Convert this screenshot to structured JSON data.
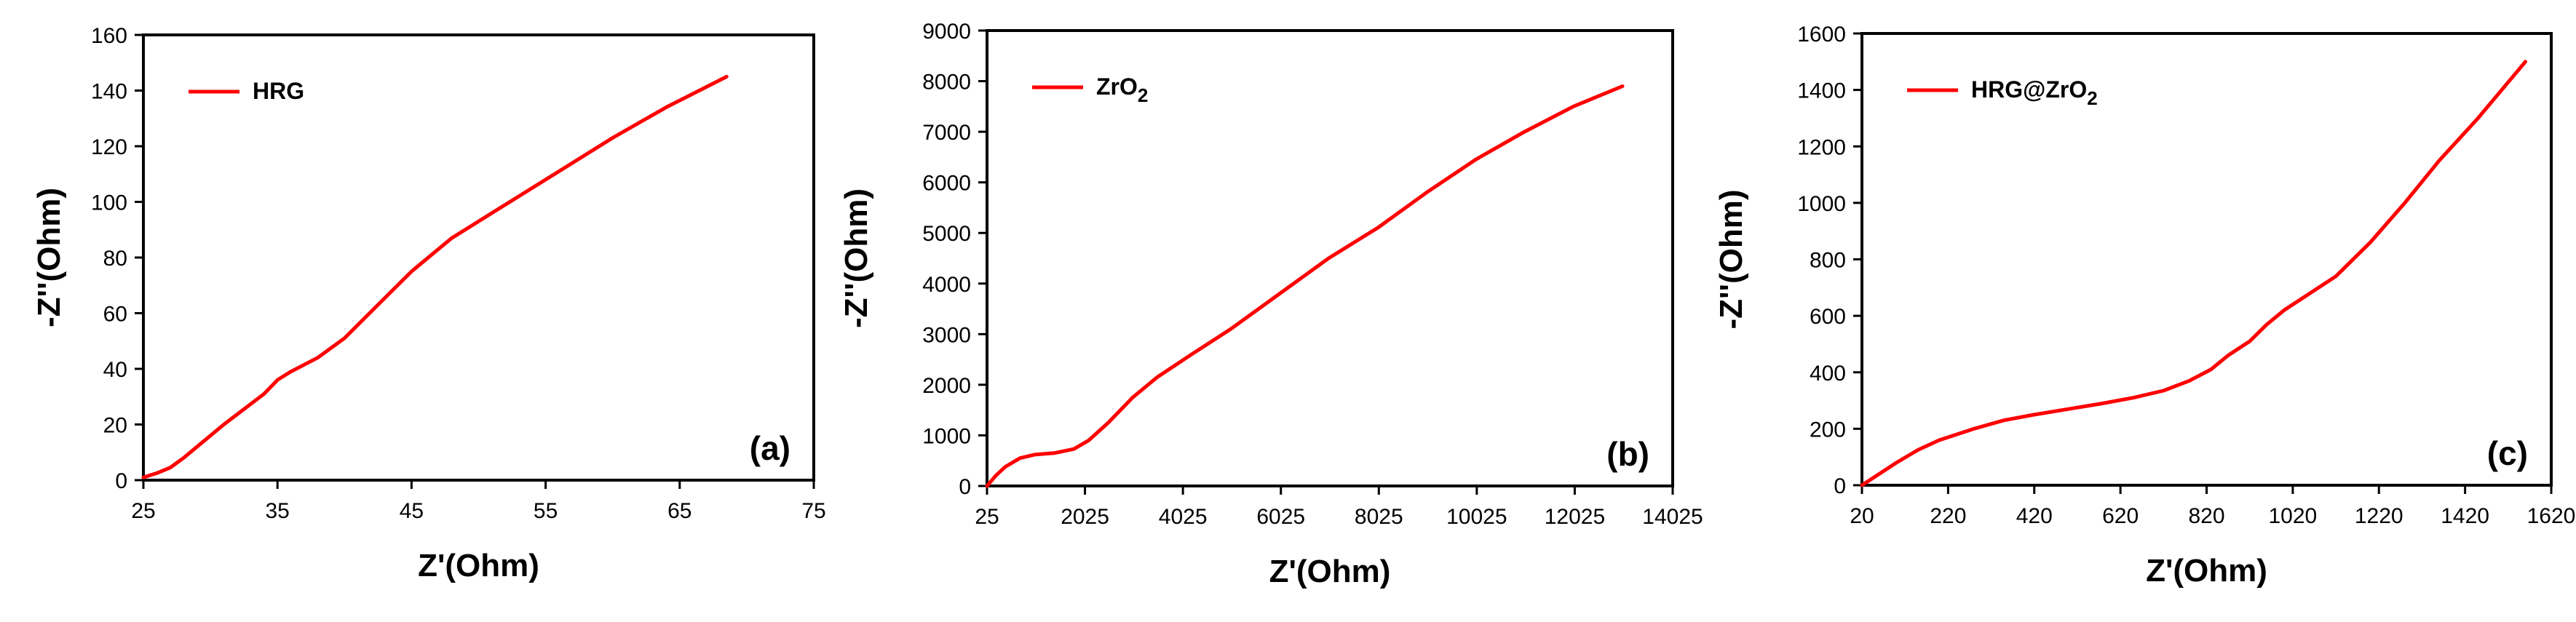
{
  "chart_data": [
    {
      "type": "line",
      "panel_label": "(a)",
      "xlabel": "Z'(Ohm)",
      "ylabel": "-Z''(Ohm)",
      "xlim": [
        25,
        75
      ],
      "ylim": [
        0,
        160
      ],
      "xticks": [
        25,
        35,
        45,
        55,
        65,
        75
      ],
      "yticks": [
        0,
        20,
        40,
        60,
        80,
        100,
        120,
        140,
        160
      ],
      "legend_position": "top-left",
      "series": [
        {
          "name": "HRG",
          "name_parts": [
            {
              "text": "HRG",
              "sub": ""
            }
          ],
          "color": "#ff0000",
          "x": [
            25.0,
            26.0,
            27.0,
            28.0,
            29.0,
            30.0,
            31.0,
            32.5,
            34.0,
            35.0,
            36.0,
            38.0,
            40.0,
            42.5,
            45.0,
            48.0,
            51.0,
            55.0,
            60.0,
            64.0,
            68.5
          ],
          "y": [
            1.0,
            2.5,
            4.5,
            8.0,
            12.0,
            16.0,
            20.0,
            25.5,
            31.0,
            36.0,
            39.0,
            44.0,
            51.0,
            63.0,
            75.0,
            87.0,
            96.0,
            108.0,
            123.0,
            134.0,
            145.0
          ]
        }
      ]
    },
    {
      "type": "line",
      "panel_label": "(b)",
      "xlabel": "Z'(Ohm)",
      "ylabel": "-Z''(Ohm)",
      "xlim": [
        25,
        14025
      ],
      "ylim": [
        0,
        9000
      ],
      "xticks": [
        25,
        2025,
        4025,
        6025,
        8025,
        10025,
        12025,
        14025
      ],
      "yticks": [
        0,
        1000,
        2000,
        3000,
        4000,
        5000,
        6000,
        7000,
        8000,
        9000
      ],
      "legend_position": "top-left",
      "series": [
        {
          "name": "ZrO2",
          "name_parts": [
            {
              "text": "ZrO",
              "sub": "2"
            }
          ],
          "color": "#ff0000",
          "x": [
            25,
            200,
            400,
            700,
            1000,
            1400,
            1800,
            2100,
            2500,
            3000,
            3500,
            4200,
            5000,
            6000,
            7000,
            8000,
            9000,
            10000,
            11000,
            12000,
            13000
          ],
          "y": [
            0,
            200,
            380,
            550,
            620,
            650,
            730,
            900,
            1250,
            1750,
            2150,
            2600,
            3100,
            3800,
            4500,
            5100,
            5800,
            6450,
            7000,
            7500,
            7900
          ]
        }
      ]
    },
    {
      "type": "line",
      "panel_label": "(c)",
      "xlabel": "Z'(Ohm)",
      "ylabel": "-Z''(Ohm)",
      "xlim": [
        20,
        1620
      ],
      "ylim": [
        0,
        1600
      ],
      "xticks": [
        20,
        220,
        420,
        620,
        820,
        1020,
        1220,
        1420,
        1620
      ],
      "yticks": [
        0,
        200,
        400,
        600,
        800,
        1000,
        1200,
        1400,
        1600
      ],
      "legend_position": "top-left",
      "series": [
        {
          "name": "HRG@ZrO2",
          "name_parts": [
            {
              "text": "HRG@ZrO",
              "sub": "2"
            }
          ],
          "color": "#ff0000",
          "x": [
            20,
            50,
            100,
            150,
            200,
            280,
            350,
            420,
            500,
            580,
            650,
            720,
            780,
            830,
            870,
            920,
            960,
            1000,
            1050,
            1120,
            1200,
            1280,
            1360,
            1450,
            1560
          ],
          "y": [
            0,
            30,
            80,
            125,
            160,
            200,
            230,
            250,
            270,
            290,
            310,
            335,
            370,
            410,
            460,
            510,
            570,
            620,
            670,
            740,
            860,
            1000,
            1150,
            1300,
            1500
          ]
        }
      ]
    }
  ]
}
